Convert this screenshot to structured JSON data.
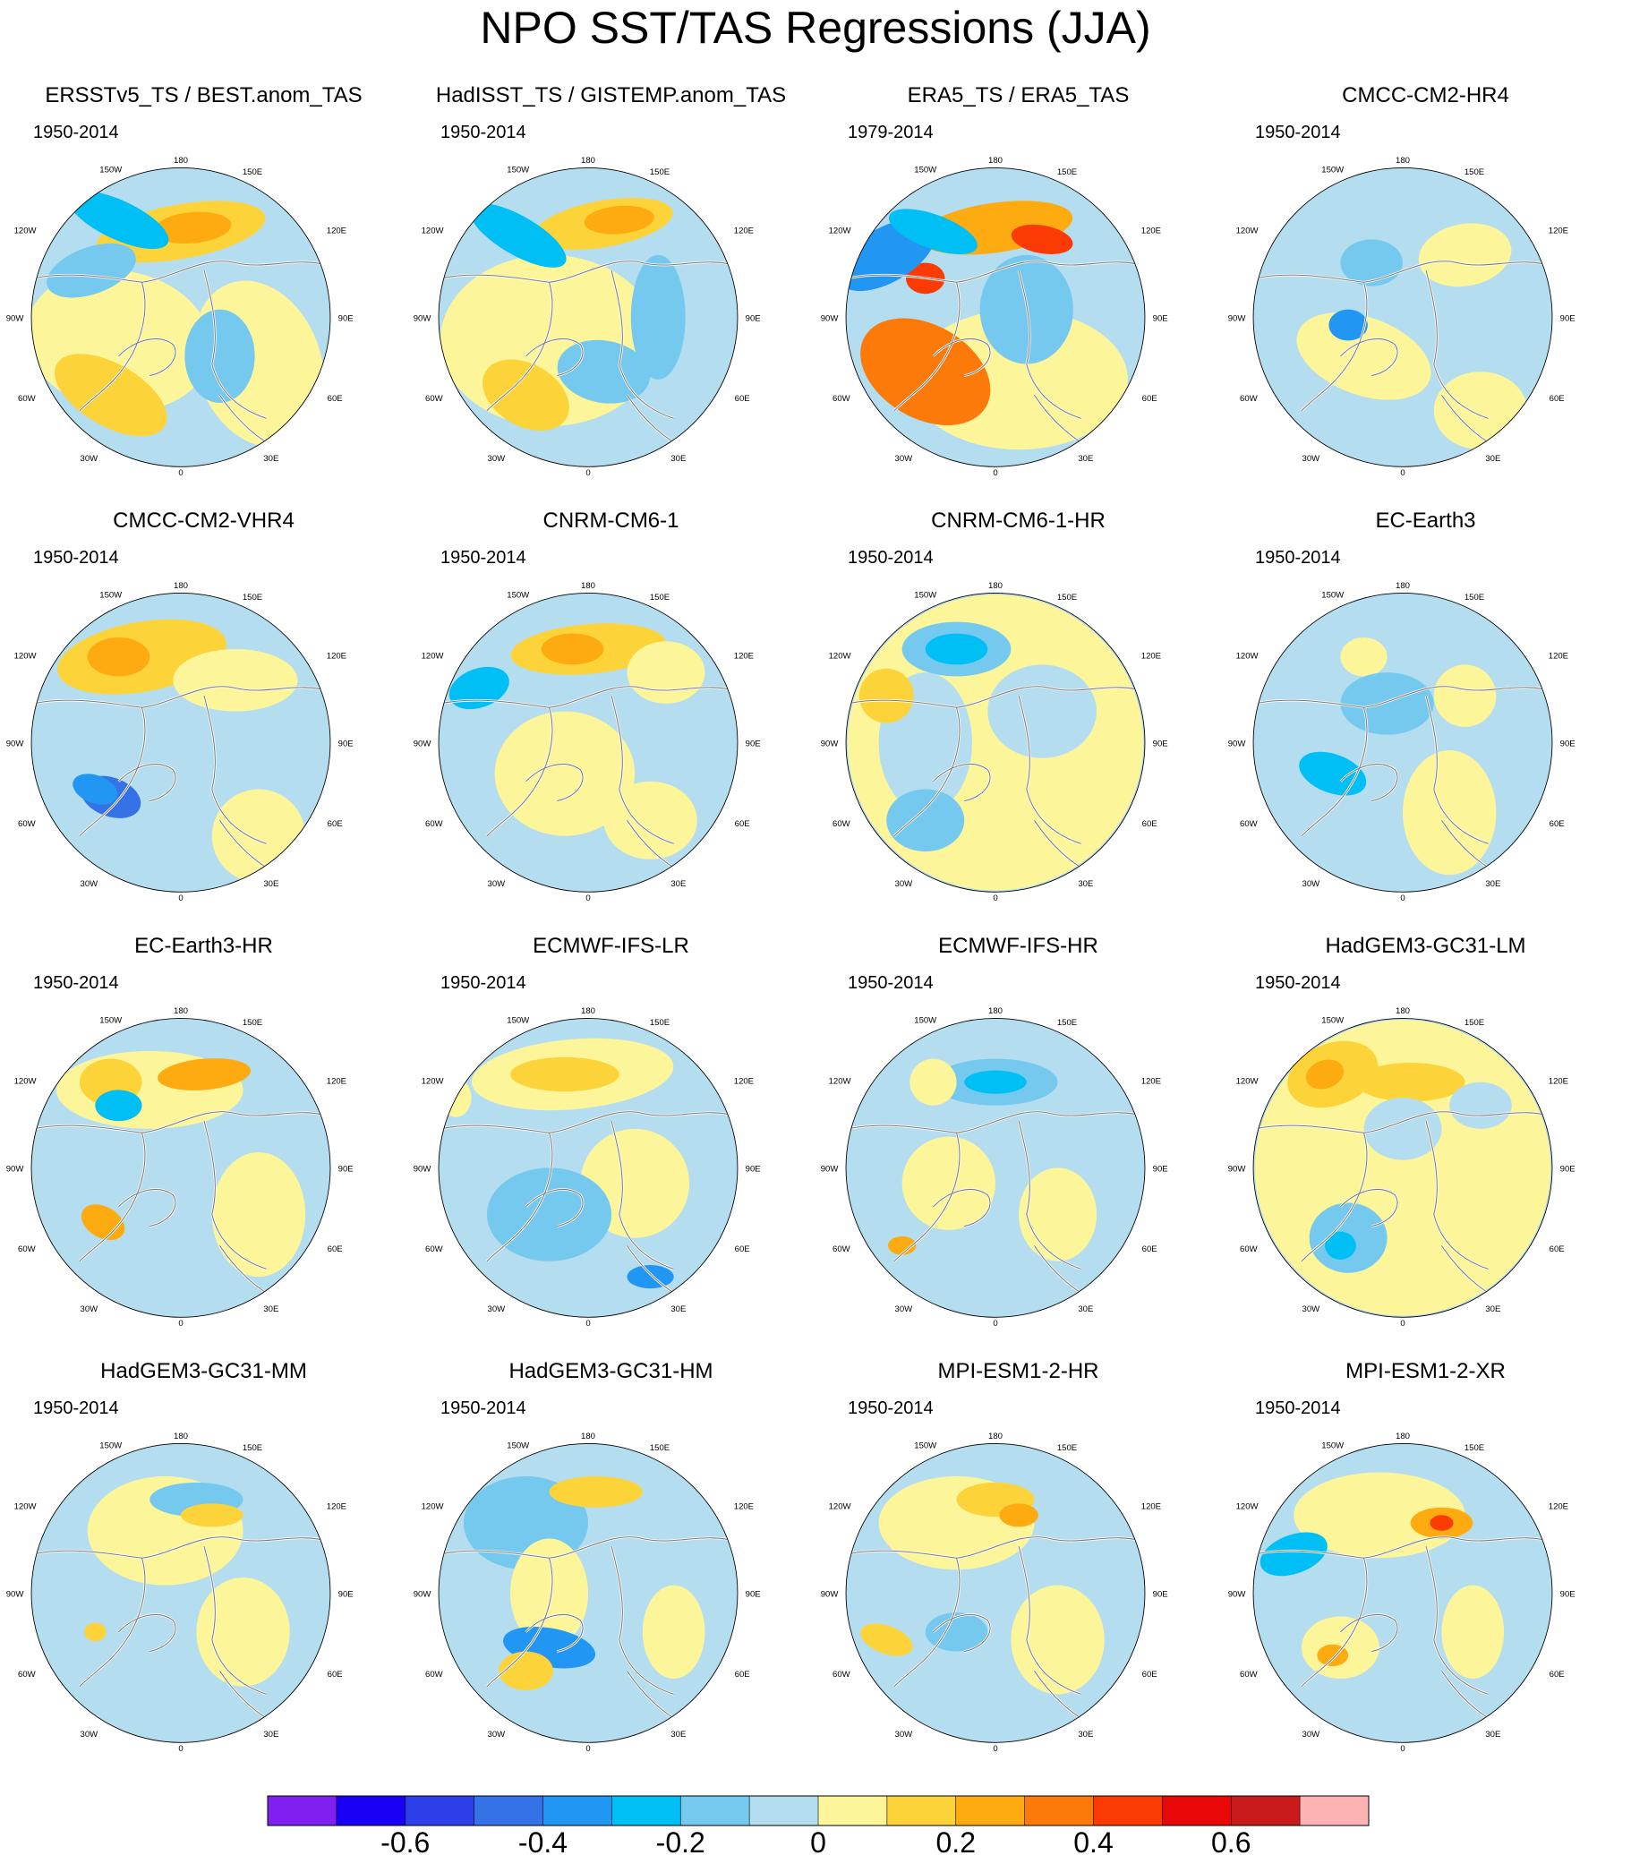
{
  "title": "NPO SST/TAS Regressions (JJA)",
  "lon_labels": {
    "top": "180",
    "upper_left": "150W",
    "upper_right": "150E",
    "mid_left": "120W",
    "mid_right": "120E",
    "left": "90W",
    "right": "90E",
    "lower_left": "60W",
    "lower_right": "60E",
    "bottom_left": "30W",
    "bottom_right": "30E",
    "bottom": "0"
  },
  "panels": [
    {
      "name": "ERSSTv5_TS / BEST.anom_TAS",
      "period": "1950-2014"
    },
    {
      "name": "HadISST_TS / GISTEMP.anom_TAS",
      "period": "1950-2014"
    },
    {
      "name": "ERA5_TS / ERA5_TAS",
      "period": "1979-2014"
    },
    {
      "name": "CMCC-CM2-HR4",
      "period": "1950-2014"
    },
    {
      "name": "CMCC-CM2-VHR4",
      "period": "1950-2014"
    },
    {
      "name": "CNRM-CM6-1",
      "period": "1950-2014"
    },
    {
      "name": "CNRM-CM6-1-HR",
      "period": "1950-2014"
    },
    {
      "name": "EC-Earth3",
      "period": "1950-2014"
    },
    {
      "name": "EC-Earth3-HR",
      "period": "1950-2014"
    },
    {
      "name": "ECMWF-IFS-LR",
      "period": "1950-2014"
    },
    {
      "name": "ECMWF-IFS-HR",
      "period": "1950-2014"
    },
    {
      "name": "HadGEM3-GC31-LM",
      "period": "1950-2014"
    },
    {
      "name": "HadGEM3-GC31-MM",
      "period": "1950-2014"
    },
    {
      "name": "HadGEM3-GC31-HM",
      "period": "1950-2014"
    },
    {
      "name": "MPI-ESM1-2-HR",
      "period": "1950-2014"
    },
    {
      "name": "MPI-ESM1-2-XR",
      "period": "1950-2014"
    }
  ],
  "colorbar": {
    "colors": [
      "#7f1ff0",
      "#1a00f5",
      "#2d3fe8",
      "#3572e8",
      "#2196f3",
      "#00bff5",
      "#75c9ef",
      "#b5ddf0",
      "#fdf59a",
      "#fdd33a",
      "#fdab10",
      "#fc7a0a",
      "#fc3a04",
      "#e90808",
      "#c91b1b",
      "#fdb3b3"
    ],
    "tick_labels": [
      "-0.6",
      "-0.4",
      "-0.2",
      "0",
      "0.2",
      "0.4",
      "0.6"
    ],
    "tick_values": [
      -0.6,
      -0.4,
      -0.2,
      0,
      0.2,
      0.4,
      0.6
    ],
    "range": [
      -0.8,
      0.8
    ]
  }
}
